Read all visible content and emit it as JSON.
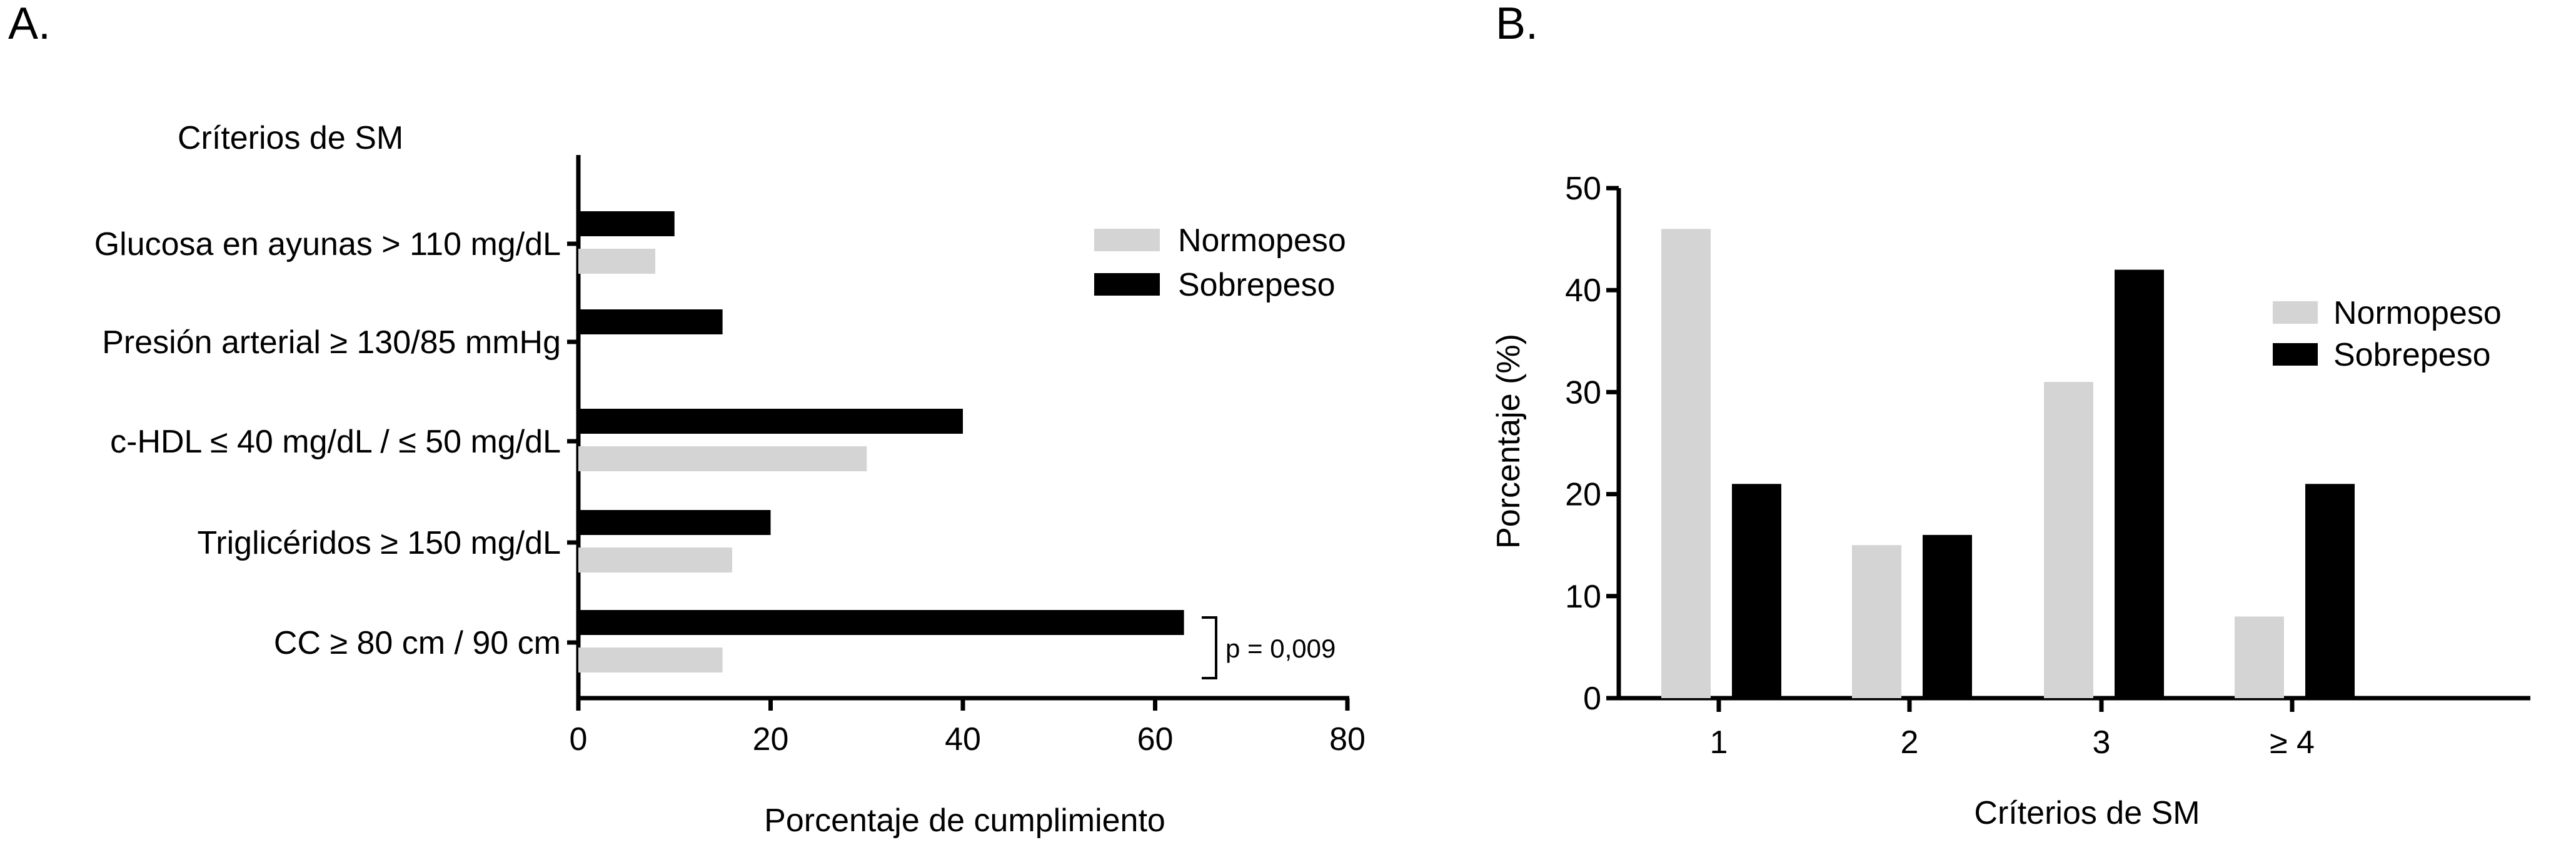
{
  "chart_data": [
    {
      "panel_label": "A.",
      "type": "bar",
      "orientation": "horizontal",
      "category_title": "Críterios de SM",
      "categories": [
        "Glucosa en ayunas > 110 mg/dL",
        "Presión arterial ≥ 130/85 mmHg",
        "c-HDL ≤ 40 mg/dL / ≤ 50 mg/dL",
        "Triglicéridos ≥ 150 mg/dL",
        "CC ≥ 80 cm / 90 cm"
      ],
      "series": [
        {
          "name": "Normopeso",
          "color": "#d4d4d4",
          "values": [
            8,
            0,
            30,
            16,
            15
          ]
        },
        {
          "name": "Sobrepeso",
          "color": "#000000",
          "values": [
            10,
            15,
            40,
            20,
            63
          ]
        }
      ],
      "xlabel": "Porcentaje de cumplimiento",
      "xlim": [
        0,
        80
      ],
      "xticks": [
        "0",
        "20",
        "40",
        "60",
        "80"
      ],
      "annotation": "p = 0,009",
      "grid": false,
      "legend_position": "top-right"
    },
    {
      "panel_label": "B.",
      "type": "bar",
      "categories": [
        "1",
        "2",
        "3",
        "≥ 4"
      ],
      "series": [
        {
          "name": "Normopeso",
          "color": "#d4d4d4",
          "values": [
            46,
            15,
            31,
            8
          ]
        },
        {
          "name": "Sobrepeso",
          "color": "#000000",
          "values": [
            21,
            16,
            42,
            21
          ]
        }
      ],
      "xlabel": "Críterios de SM",
      "ylabel": "Porcentaje (%)",
      "ylim": [
        0,
        50
      ],
      "yticks": [
        "0",
        "10",
        "20",
        "30",
        "40",
        "50"
      ],
      "grid": false,
      "legend_position": "top-right"
    }
  ]
}
